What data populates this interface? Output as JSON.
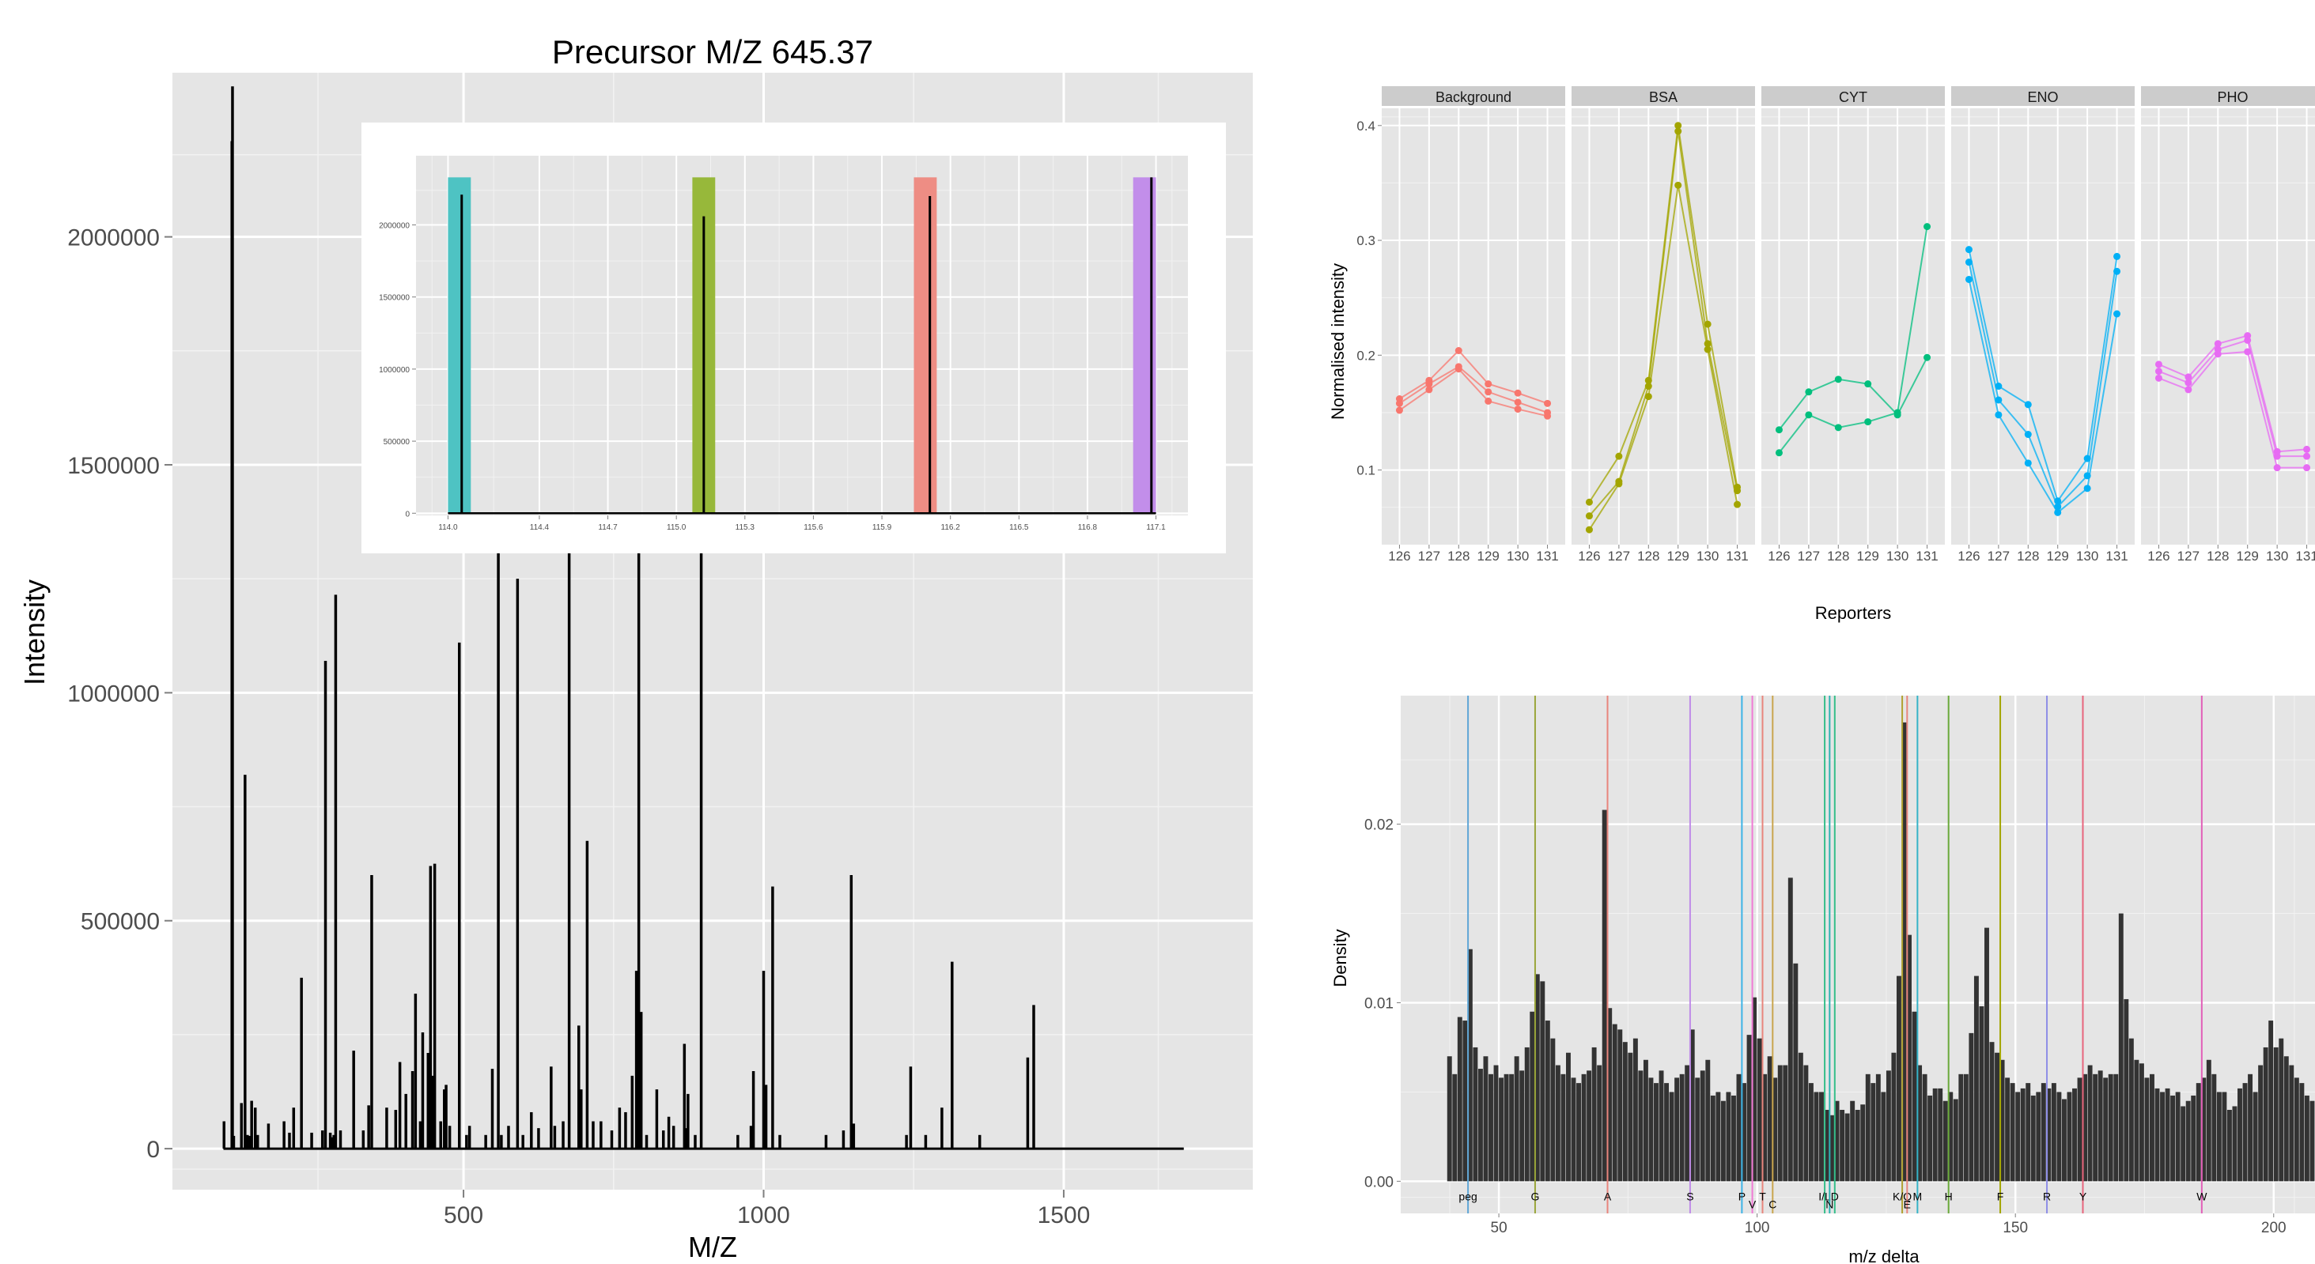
{
  "spectrum": {
    "title": "Precursor M/Z 645.37",
    "xlabel": "M/Z",
    "ylabel": "Intensity"
  },
  "reporters": {
    "xlabel": "Reporters",
    "ylabel": "Normalised intensity"
  },
  "density": {
    "xlabel": "m/z delta",
    "ylabel": "Density"
  },
  "chart_data": [
    {
      "type": "bar",
      "panel": "spectrum",
      "title": "Precursor M/Z 645.37",
      "xlabel": "M/Z",
      "ylabel": "Intensity",
      "xlim": [
        15,
        1815
      ],
      "ylim": [
        -90000,
        2360000
      ],
      "x_ticks": [
        500,
        1000,
        1500
      ],
      "x_tick_labels": [
        "500",
        "1000",
        "1500"
      ],
      "y_ticks": [
        0,
        500000,
        1000000,
        1500000,
        2000000
      ],
      "y_tick_labels": [
        "0",
        "500000",
        "1000000",
        "1500000",
        "2000000"
      ],
      "baseline_range": [
        100,
        1700
      ],
      "peaks": [
        [
          101,
          60000
        ],
        [
          114.1,
          2210000
        ],
        [
          115.1,
          2330000
        ],
        [
          116.1,
          28000
        ],
        [
          117.1,
          28000
        ],
        [
          130,
          100000
        ],
        [
          136,
          820000
        ],
        [
          140,
          30000
        ],
        [
          143,
          28000
        ],
        [
          147,
          105000
        ],
        [
          153,
          90000
        ],
        [
          157,
          30000
        ],
        [
          175,
          55000
        ],
        [
          201,
          60000
        ],
        [
          210,
          35000
        ],
        [
          217,
          90000
        ],
        [
          230,
          375000
        ],
        [
          247,
          35000
        ],
        [
          265,
          40000
        ],
        [
          270,
          1070000
        ],
        [
          278,
          35000
        ],
        [
          280,
          25000
        ],
        [
          284,
          30000
        ],
        [
          287,
          1215000
        ],
        [
          295,
          40000
        ],
        [
          317,
          215000
        ],
        [
          333,
          40000
        ],
        [
          342,
          95000
        ],
        [
          347,
          600000
        ],
        [
          372,
          90000
        ],
        [
          387,
          85000
        ],
        [
          394,
          190000
        ],
        [
          404,
          120000
        ],
        [
          415,
          170000
        ],
        [
          420,
          340000
        ],
        [
          428,
          60000
        ],
        [
          432,
          255000
        ],
        [
          441,
          210000
        ],
        [
          443,
          120000
        ],
        [
          445,
          620000
        ],
        [
          449,
          160000
        ],
        [
          452,
          625000
        ],
        [
          462,
          60000
        ],
        [
          468,
          130000
        ],
        [
          471,
          140000
        ],
        [
          477,
          50000
        ],
        [
          493,
          1110000
        ],
        [
          505,
          30000
        ],
        [
          510,
          50000
        ],
        [
          537,
          30000
        ],
        [
          548,
          175000
        ],
        [
          558,
          1350000
        ],
        [
          563,
          30000
        ],
        [
          575,
          50000
        ],
        [
          590,
          1250000
        ],
        [
          599,
          30000
        ],
        [
          613,
          80000
        ],
        [
          625,
          45000
        ],
        [
          646,
          180000
        ],
        [
          652,
          50000
        ],
        [
          666,
          60000
        ],
        [
          676,
          1350000
        ],
        [
          692,
          270000
        ],
        [
          696,
          130000
        ],
        [
          706,
          675000
        ],
        [
          716,
          60000
        ],
        [
          729,
          60000
        ],
        [
          747,
          40000
        ],
        [
          760,
          90000
        ],
        [
          770,
          80000
        ],
        [
          781,
          160000
        ],
        [
          788,
          390000
        ],
        [
          792,
          1340000
        ],
        [
          796,
          300000
        ],
        [
          805,
          30000
        ],
        [
          822,
          130000
        ],
        [
          833,
          40000
        ],
        [
          842,
          70000
        ],
        [
          850,
          50000
        ],
        [
          868,
          230000
        ],
        [
          870,
          45000
        ],
        [
          874,
          120000
        ],
        [
          886,
          30000
        ],
        [
          896,
          1350000
        ],
        [
          957,
          30000
        ],
        [
          979,
          50000
        ],
        [
          983,
          170000
        ],
        [
          1000,
          390000
        ],
        [
          1004,
          140000
        ],
        [
          1015,
          575000
        ],
        [
          1027,
          30000
        ],
        [
          1104,
          30000
        ],
        [
          1133,
          40000
        ],
        [
          1146,
          600000
        ],
        [
          1150,
          55000
        ],
        [
          1238,
          30000
        ],
        [
          1245,
          180000
        ],
        [
          1270,
          30000
        ],
        [
          1297,
          90000
        ],
        [
          1314,
          410000
        ],
        [
          1360,
          30000
        ],
        [
          1440,
          200000
        ],
        [
          1450,
          315000
        ]
      ]
    },
    {
      "type": "bar",
      "panel": "spectrum-inset",
      "xlim": [
        113.86,
        117.24
      ],
      "ylim": [
        -15000,
        2480000
      ],
      "x_ticks": [
        114.0,
        114.4,
        114.7,
        115.0,
        115.3,
        115.6,
        115.9,
        116.2,
        116.5,
        116.8,
        117.1
      ],
      "x_tick_labels": [
        "114.0",
        "114.4",
        "114.7",
        "115.0",
        "115.3",
        "115.6",
        "115.9",
        "116.2",
        "116.5",
        "116.8",
        "117.1"
      ],
      "y_ticks": [
        0,
        500000,
        1000000,
        1500000,
        2000000
      ],
      "y_tick_labels": [
        "0",
        "500000",
        "1000000",
        "1500000",
        "2000000"
      ],
      "highlight_bands": [
        {
          "x0": 114.0,
          "x1": 114.1,
          "color": "#4ec3c3"
        },
        {
          "x0": 115.07,
          "x1": 115.17,
          "color": "#97b83a"
        },
        {
          "x0": 116.04,
          "x1": 116.14,
          "color": "#ee8d84"
        },
        {
          "x0": 117.0,
          "x1": 117.1,
          "color": "#c28eea"
        }
      ],
      "peaks": [
        [
          114.06,
          2210000
        ],
        [
          115.12,
          2060000
        ],
        [
          116.11,
          2200000
        ],
        [
          117.08,
          2330000
        ]
      ]
    },
    {
      "type": "line",
      "panel": "reporters",
      "xlabel": "Reporters",
      "ylabel": "Normalised intensity",
      "categories": [
        "126",
        "127",
        "128",
        "129",
        "130",
        "131"
      ],
      "ylim": [
        0.035,
        0.415
      ],
      "y_ticks": [
        0.1,
        0.2,
        0.3,
        0.4
      ],
      "y_tick_labels": [
        "0.1",
        "0.2",
        "0.3",
        "0.4"
      ],
      "facets": [
        {
          "name": "Background",
          "color": "#f8766d",
          "series": [
            {
              "values": [
                0.152,
                0.17,
                0.188,
                0.16,
                0.153,
                0.147
              ]
            },
            {
              "values": [
                0.158,
                0.175,
                0.19,
                0.168,
                0.159,
                0.15
              ]
            },
            {
              "values": [
                0.162,
                0.178,
                0.204,
                0.175,
                0.167,
                0.158
              ]
            }
          ]
        },
        {
          "name": "BSA",
          "color": "#a3a500",
          "series": [
            {
              "values": [
                0.048,
                0.088,
                0.164,
                0.348,
                0.205,
                0.07
              ]
            },
            {
              "values": [
                0.06,
                0.09,
                0.173,
                0.395,
                0.21,
                0.082
              ]
            },
            {
              "values": [
                0.072,
                0.112,
                0.178,
                0.4,
                0.227,
                0.085
              ]
            }
          ]
        },
        {
          "name": "CYT",
          "color": "#00bf7d",
          "series": [
            {
              "values": [
                0.115,
                0.148,
                0.137,
                0.142,
                0.15,
                0.312
              ]
            },
            {
              "values": [
                0.135,
                0.168,
                0.179,
                0.175,
                0.148,
                0.198
              ]
            }
          ]
        },
        {
          "name": "ENO",
          "color": "#00b0f6",
          "series": [
            {
              "values": [
                0.266,
                0.148,
                0.106,
                0.063,
                0.084,
                0.236
              ]
            },
            {
              "values": [
                0.281,
                0.161,
                0.131,
                0.068,
                0.095,
                0.273
              ]
            },
            {
              "values": [
                0.292,
                0.173,
                0.157,
                0.073,
                0.11,
                0.286
              ]
            }
          ]
        },
        {
          "name": "PHO",
          "color": "#e76bf3",
          "series": [
            {
              "values": [
                0.18,
                0.17,
                0.201,
                0.203,
                0.102,
                0.102
              ]
            },
            {
              "values": [
                0.186,
                0.176,
                0.205,
                0.213,
                0.112,
                0.112
              ]
            },
            {
              "values": [
                0.192,
                0.181,
                0.21,
                0.217,
                0.116,
                0.118
              ]
            }
          ]
        }
      ]
    },
    {
      "type": "bar",
      "panel": "density",
      "xlabel": "m/z delta",
      "ylabel": "Density",
      "xlim": [
        31,
        208
      ],
      "ylim": [
        -0.0018,
        0.0272
      ],
      "x_ticks": [
        50,
        100,
        150,
        200
      ],
      "x_tick_labels": [
        "50",
        "100",
        "150",
        "200"
      ],
      "y_ticks": [
        0.0,
        0.01,
        0.02
      ],
      "y_tick_labels": [
        "0.00",
        "0.01",
        "0.02"
      ],
      "hist_x0": 40,
      "hist_bin_width": 1,
      "hist_values": [
        0.007,
        0.006,
        0.0092,
        0.009,
        0.013,
        0.0075,
        0.0063,
        0.007,
        0.006,
        0.0065,
        0.0058,
        0.006,
        0.006,
        0.007,
        0.0062,
        0.0075,
        0.0095,
        0.0116,
        0.0112,
        0.009,
        0.008,
        0.0065,
        0.006,
        0.0072,
        0.0058,
        0.0055,
        0.006,
        0.0062,
        0.0075,
        0.0065,
        0.0208,
        0.0097,
        0.0088,
        0.0085,
        0.0078,
        0.0072,
        0.008,
        0.0062,
        0.0068,
        0.0058,
        0.0055,
        0.0062,
        0.0055,
        0.005,
        0.0058,
        0.006,
        0.0065,
        0.0085,
        0.0058,
        0.0062,
        0.0068,
        0.0048,
        0.005,
        0.0045,
        0.005,
        0.0048,
        0.006,
        0.0055,
        0.0082,
        0.0103,
        0.008,
        0.006,
        0.007,
        0.0058,
        0.0065,
        0.0065,
        0.017,
        0.0122,
        0.0072,
        0.0065,
        0.0055,
        0.005,
        0.005,
        0.004,
        0.0037,
        0.0045,
        0.004,
        0.0038,
        0.0045,
        0.004,
        0.0043,
        0.006,
        0.0055,
        0.006,
        0.005,
        0.0062,
        0.0072,
        0.0115,
        0.0257,
        0.0138,
        0.0095,
        0.0065,
        0.006,
        0.0048,
        0.0052,
        0.0052,
        0.0045,
        0.005,
        0.0046,
        0.006,
        0.006,
        0.0083,
        0.0115,
        0.0098,
        0.0142,
        0.0078,
        0.0072,
        0.0068,
        0.0058,
        0.0055,
        0.005,
        0.0052,
        0.0055,
        0.0048,
        0.005,
        0.0055,
        0.0052,
        0.0055,
        0.005,
        0.0046,
        0.005,
        0.0052,
        0.0058,
        0.006,
        0.0065,
        0.006,
        0.0062,
        0.0058,
        0.006,
        0.006,
        0.015,
        0.0102,
        0.008,
        0.0068,
        0.0066,
        0.0058,
        0.006,
        0.0052,
        0.005,
        0.0052,
        0.0048,
        0.005,
        0.0042,
        0.0045,
        0.0048,
        0.0055,
        0.0058,
        0.0068,
        0.006,
        0.005,
        0.005,
        0.004,
        0.0042,
        0.0052,
        0.0055,
        0.006,
        0.005,
        0.0065,
        0.0075,
        0.009,
        0.0075,
        0.008,
        0.007,
        0.0065,
        0.0058,
        0.0055,
        0.0048,
        0.0045,
        0.005,
        0.007,
        0.0085,
        0.0085,
        0.007,
        0.006,
        0.0062,
        0.0055,
        0.0052,
        0.005,
        0.0045,
        0.006,
        0.005,
        0.0048,
        0.006,
        0.007,
        0.0085,
        0.01,
        0.009,
        0.007,
        0.006,
        0.005,
        0.0048,
        0.005,
        0.0045,
        0.0048,
        0.005,
        0.0045,
        0.0055,
        0.0055,
        0.0065,
        0.005
      ],
      "residue_lines": [
        {
          "label": "peg",
          "x": 44.03,
          "color": "#5fa6d6",
          "label_row": 0
        },
        {
          "label": "G",
          "x": 57.02,
          "color": "#9aa53a",
          "label_row": 0
        },
        {
          "label": "A",
          "x": 71.04,
          "color": "#e8857c",
          "label_row": 0
        },
        {
          "label": "S",
          "x": 87.03,
          "color": "#c08ce8",
          "label_row": 0
        },
        {
          "label": "P",
          "x": 97.05,
          "color": "#3cb4e6",
          "label_row": 0
        },
        {
          "label": "V",
          "x": 99.07,
          "color": "#f07ad5",
          "label_row": 1
        },
        {
          "label": "T",
          "x": 101.05,
          "color": "#e8857c",
          "label_row": 0
        },
        {
          "label": "C",
          "x": 103.01,
          "color": "#c9a54e",
          "label_row": 1
        },
        {
          "label": "I/L",
          "x": 113.08,
          "color": "#35be8a",
          "label_row": 0
        },
        {
          "label": "N",
          "x": 114.04,
          "color": "#2bb3b3",
          "label_row": 1
        },
        {
          "label": "D",
          "x": 115.03,
          "color": "#35be8a",
          "label_row": 0
        },
        {
          "label": "K/Q",
          "x": 128.09,
          "color": "#b0a030",
          "label_row": 0
        },
        {
          "label": "E",
          "x": 129.04,
          "color": "#e8857c",
          "label_row": 1
        },
        {
          "label": "M",
          "x": 131.04,
          "color": "#35b3c8",
          "label_row": 0
        },
        {
          "label": "H",
          "x": 137.06,
          "color": "#6aaa3a",
          "label_row": 0
        },
        {
          "label": "F",
          "x": 147.07,
          "color": "#a3a500",
          "label_row": 0
        },
        {
          "label": "R",
          "x": 156.1,
          "color": "#8e8ee6",
          "label_row": 0
        },
        {
          "label": "Y",
          "x": 163.06,
          "color": "#e8657c",
          "label_row": 0
        },
        {
          "label": "W",
          "x": 186.08,
          "color": "#e25fb8",
          "label_row": 0
        }
      ]
    }
  ]
}
